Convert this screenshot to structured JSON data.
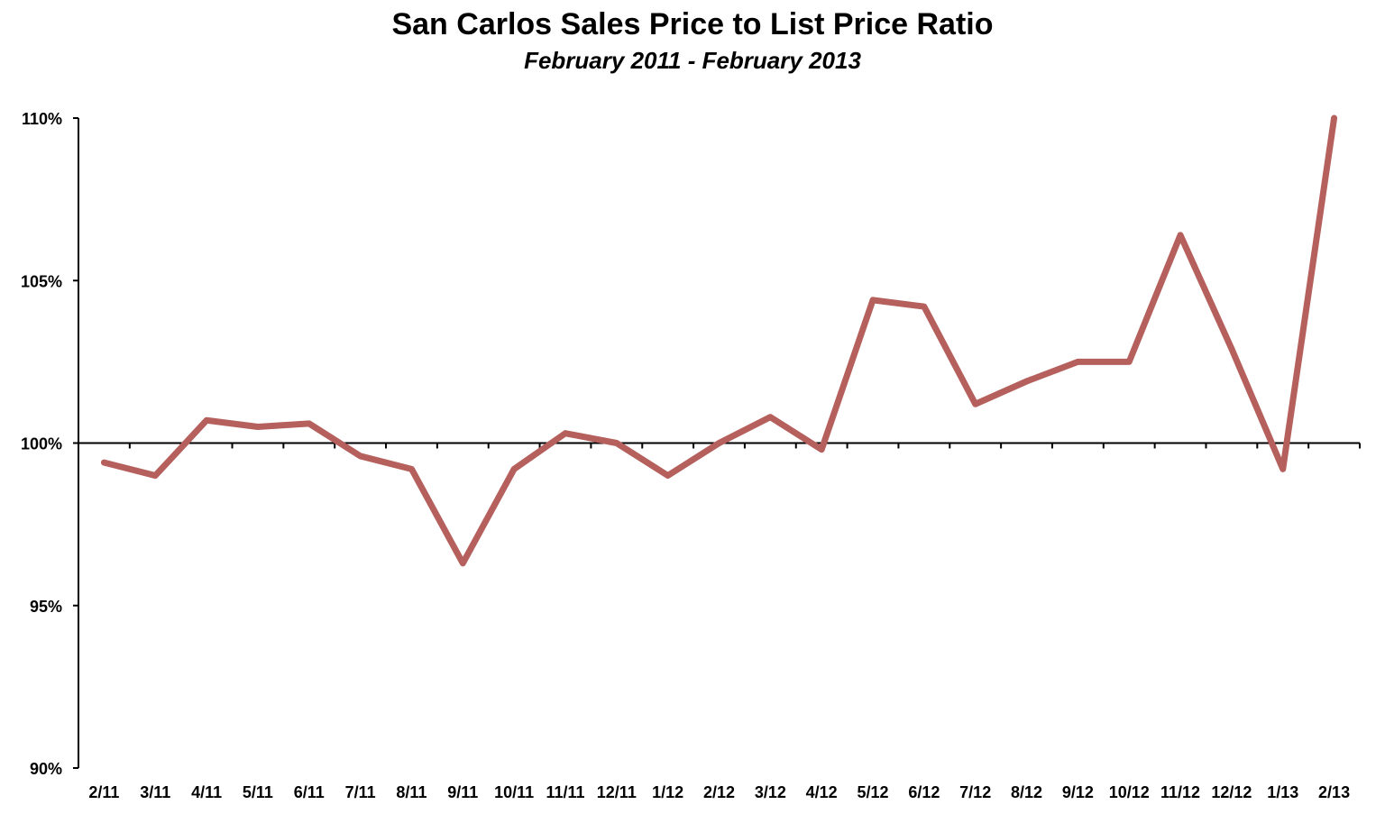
{
  "chart_data": {
    "type": "line",
    "title": "San Carlos Sales Price to List Price Ratio",
    "subtitle": "February 2011 - February 2013",
    "categories": [
      "2/11",
      "3/11",
      "4/11",
      "5/11",
      "6/11",
      "7/11",
      "8/11",
      "9/11",
      "10/11",
      "11/11",
      "12/11",
      "1/12",
      "2/12",
      "3/12",
      "4/12",
      "5/12",
      "6/12",
      "7/12",
      "8/12",
      "9/12",
      "10/12",
      "11/12",
      "12/12",
      "1/13",
      "2/13"
    ],
    "series": [
      {
        "values": [
          99.4,
          99.0,
          100.7,
          100.5,
          100.6,
          99.6,
          99.2,
          96.3,
          99.2,
          100.3,
          100.0,
          99.0,
          100.0,
          100.8,
          99.8,
          104.4,
          104.2,
          101.2,
          101.9,
          102.5,
          102.5,
          106.4,
          102.9,
          99.2,
          110.0
        ],
        "color": "#b5605c"
      }
    ],
    "ylim": [
      90,
      110
    ],
    "yticks": [
      90,
      95,
      100,
      105,
      110
    ],
    "ytick_labels": [
      "90%",
      "95%",
      "100%",
      "105%",
      "110%"
    ],
    "x_axis_crosses_at": 100,
    "grid": false,
    "legend": "none"
  }
}
